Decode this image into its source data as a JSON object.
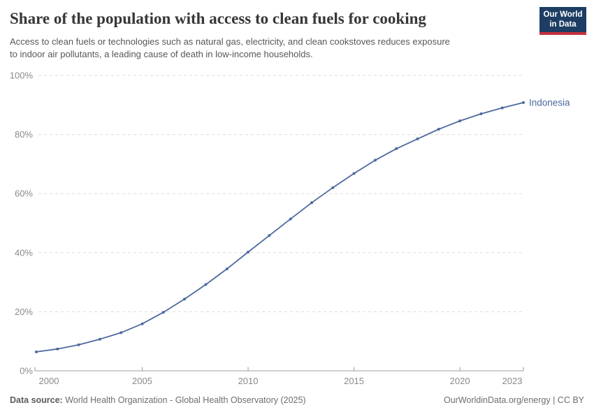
{
  "header": {
    "title": "Share of the population with access to clean fuels for cooking",
    "subtitle_lines": [
      "Access to clean fuels or technologies such as natural gas, electricity, and clean cookstoves reduces exposure",
      "to indoor air pollutants, a leading cause of death in low-income households."
    ],
    "logo": {
      "line1": "Our World",
      "line2": "in Data"
    }
  },
  "chart_data": {
    "type": "line",
    "title": "Share of the population with access to clean fuels for cooking",
    "xlabel": "",
    "ylabel": "",
    "xlim": [
      2000,
      2023
    ],
    "ylim": [
      0,
      100
    ],
    "grid": true,
    "y_ticks": [
      0,
      20,
      40,
      60,
      80,
      100
    ],
    "y_tick_suffix": "%",
    "x_ticks": [
      2000,
      2005,
      2010,
      2015,
      2020,
      2023
    ],
    "legend_position": "end-of-line",
    "series": [
      {
        "name": "Indonesia",
        "color": "#4c6a9e",
        "x": [
          2000,
          2001,
          2002,
          2003,
          2004,
          2005,
          2006,
          2007,
          2008,
          2009,
          2010,
          2011,
          2012,
          2013,
          2014,
          2015,
          2016,
          2017,
          2018,
          2019,
          2020,
          2021,
          2022,
          2023
        ],
        "values": [
          6.4,
          7.4,
          8.8,
          10.7,
          12.9,
          15.9,
          19.8,
          24.3,
          29.2,
          34.5,
          40.2,
          45.8,
          51.4,
          56.9,
          62.0,
          66.8,
          71.3,
          75.2,
          78.5,
          81.8,
          84.6,
          87.0,
          89.0,
          90.8
        ]
      }
    ]
  },
  "footer": {
    "source_label": "Data source:",
    "source_text": "World Health Organization - Global Health Observatory (2025)",
    "credit": "OurWorldinData.org/energy | CC BY"
  },
  "colors": {
    "line": "#4c6a9e",
    "logo_bg": "#1d3d63",
    "logo_bar": "#c5303e",
    "grid": "#dcdcdc",
    "axis": "#9e9e9e",
    "tick_label": "#8a8a8a",
    "title": "#383636",
    "subtitle": "#575757",
    "footer": "#6e6e6e"
  }
}
